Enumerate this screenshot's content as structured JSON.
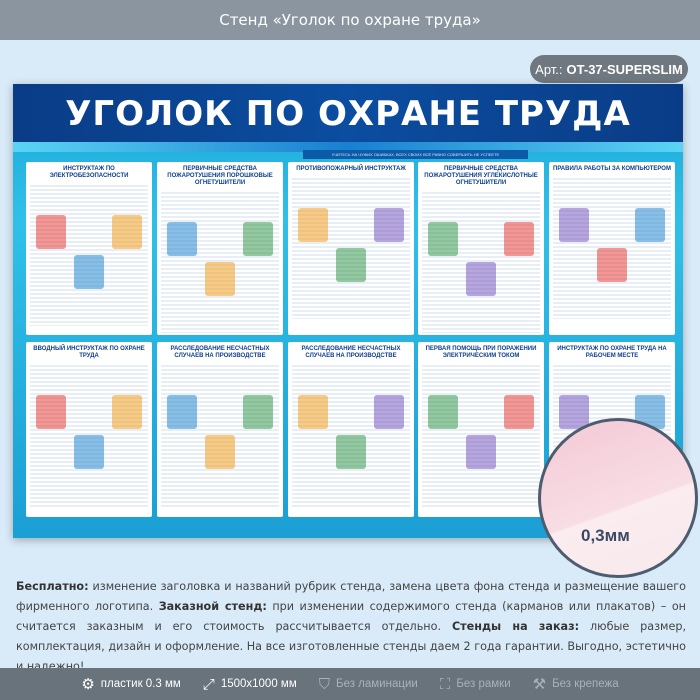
{
  "header": {
    "title": "Стенд «Уголок по охране труда»"
  },
  "article": {
    "label": "Арт.:",
    "code": "OT-37-SUPERSLIM"
  },
  "stand": {
    "title": "УГОЛОК ПО ОХРАНЕ ТРУДА",
    "slogan": "УЧИТЕСЬ НА ЧУЖИХ ОШИБКАХ, ВСЕХ СВОИХ ВСЁ РАВНО СОВЕРШИТЬ НЕ УСПЕЕТЕ",
    "panels": [
      {
        "title": "ИНСТРУКТАЖ ПО ЭЛЕКТРОБЕЗОПАСНОСТИ"
      },
      {
        "title": "ПЕРВИЧНЫЕ СРЕДСТВА ПОЖАРОТУШЕНИЯ ПОРОШКОВЫЕ ОГНЕТУШИТЕЛИ"
      },
      {
        "title": "ПРОТИВОПОЖАРНЫЙ ИНСТРУКТАЖ"
      },
      {
        "title": "ПЕРВИЧНЫЕ СРЕДСТВА ПОЖАРОТУШЕНИЯ УГЛЕКИСЛОТНЫЕ ОГНЕТУШИТЕЛИ"
      },
      {
        "title": "ПРАВИЛА РАБОТЫ ЗА КОМПЬЮТЕРОМ"
      },
      {
        "title": "ВВОДНЫЙ ИНСТРУКТАЖ ПО ОХРАНЕ ТРУДА"
      },
      {
        "title": "РАССЛЕДОВАНИЕ НЕСЧАСТНЫХ СЛУЧАЕВ НА ПРОИЗВОДСТВЕ"
      },
      {
        "title": "РАССЛЕДОВАНИЕ НЕСЧАСТНЫХ СЛУЧАЕВ НА ПРОИЗВОДСТВЕ"
      },
      {
        "title": "ПЕРВАЯ ПОМОЩЬ ПРИ ПОРАЖЕНИИ ЭЛЕКТРИЧЕСКИМ ТОКОМ"
      },
      {
        "title": "ИНСТРУКТАЖ ПО ОХРАНЕ ТРУДА НА РАБОЧЕМ МЕСТЕ"
      }
    ]
  },
  "thickness": "0,3мм",
  "description": {
    "b1": "Бесплатно:",
    "t1": " изменение заголовка и названий рубрик стенда, замена цвета фона стенда и размещение вашего фирменного логотипа. ",
    "b2": "Заказной стенд:",
    "t2": " при изменении содержимого стенда (карманов или плакатов) – он считается заказным и его стоимость рассчитывается отдельно. ",
    "b3": "Стенды на заказ:",
    "t3": " любые размер, комплектация, дизайн и оформление. На все изготовленные стенды даем 2 года гарантии. Выгодно, эстетично и надежно!"
  },
  "features": [
    {
      "icon": "gear-icon",
      "label": "пластик 0.3 мм"
    },
    {
      "icon": "expand-icon",
      "label": "1500x1000 мм"
    },
    {
      "icon": "shield-check-icon",
      "label": "Без ламинации"
    },
    {
      "icon": "frame-icon",
      "label": "Без рамки"
    },
    {
      "icon": "drill-icon",
      "label": "Без крепежа"
    }
  ]
}
